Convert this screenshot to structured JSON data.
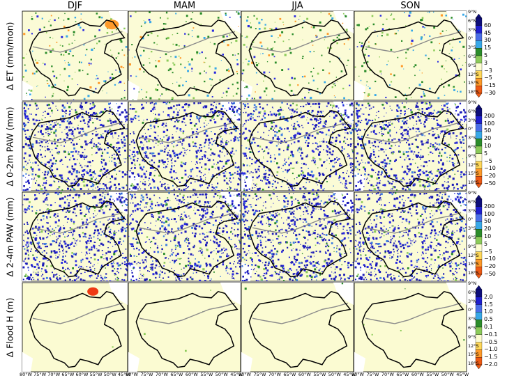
{
  "chart_data": {
    "type": "heatmap",
    "layout": "4 rows x 4 columns of seasonal difference maps over the Amazon basin",
    "columns": [
      "DJF",
      "MAM",
      "JJA",
      "SON"
    ],
    "rows": [
      {
        "label": "Δ ET (mm/mon)",
        "colorbar_ticks": [
          "60",
          "45",
          "30",
          "15",
          "5",
          "3",
          "−3",
          "−5",
          "−15",
          "−30"
        ]
      },
      {
        "label": "Δ 0-2m PAW (mm)",
        "colorbar_ticks": [
          "200",
          "100",
          "50",
          "20",
          "10",
          "5",
          "−5",
          "−10",
          "−20",
          "−50"
        ]
      },
      {
        "label": "Δ 2-4m PAW (mm)",
        "colorbar_ticks": [
          "200",
          "100",
          "50",
          "20",
          "10",
          "5",
          "−5",
          "−10",
          "−20",
          "−50"
        ]
      },
      {
        "label": "Δ Flood H (m)",
        "colorbar_ticks": [
          "2.0",
          "1.5",
          "1.0",
          "0.5",
          "0.1",
          "−0.1",
          "−0.5",
          "−1.0",
          "−1.5",
          "−2.0"
        ]
      }
    ],
    "lat_ticks": [
      "9°N",
      "6°N",
      "3°N",
      "0°",
      "3°S",
      "6°S",
      "9°S",
      "12°S",
      "15°S",
      "18°S"
    ],
    "lon_ticks": [
      "80°W",
      "75°W",
      "70°W",
      "65°W",
      "60°W",
      "55°W",
      "50°W",
      "45°W"
    ],
    "lat_range": [
      -18,
      9
    ],
    "lon_range": [
      -80,
      -45
    ],
    "colorbar_colors": [
      "#0d0d7a",
      "#1f1fd0",
      "#4a6ee8",
      "#38a8e8",
      "#2b8c2b",
      "#8ccb5a",
      "#fdfdd2",
      "#ffd85a",
      "#fe9a2a",
      "#ee5a14"
    ],
    "dominant_patterns": [
      [
        "mixed",
        "mixed",
        "mixed",
        "mixed"
      ],
      [
        "positive",
        "positive",
        "positive",
        "positive"
      ],
      [
        "positive",
        "positive",
        "positive",
        "positive"
      ],
      [
        "neutral",
        "neutral",
        "neutral",
        "neutral"
      ]
    ]
  }
}
